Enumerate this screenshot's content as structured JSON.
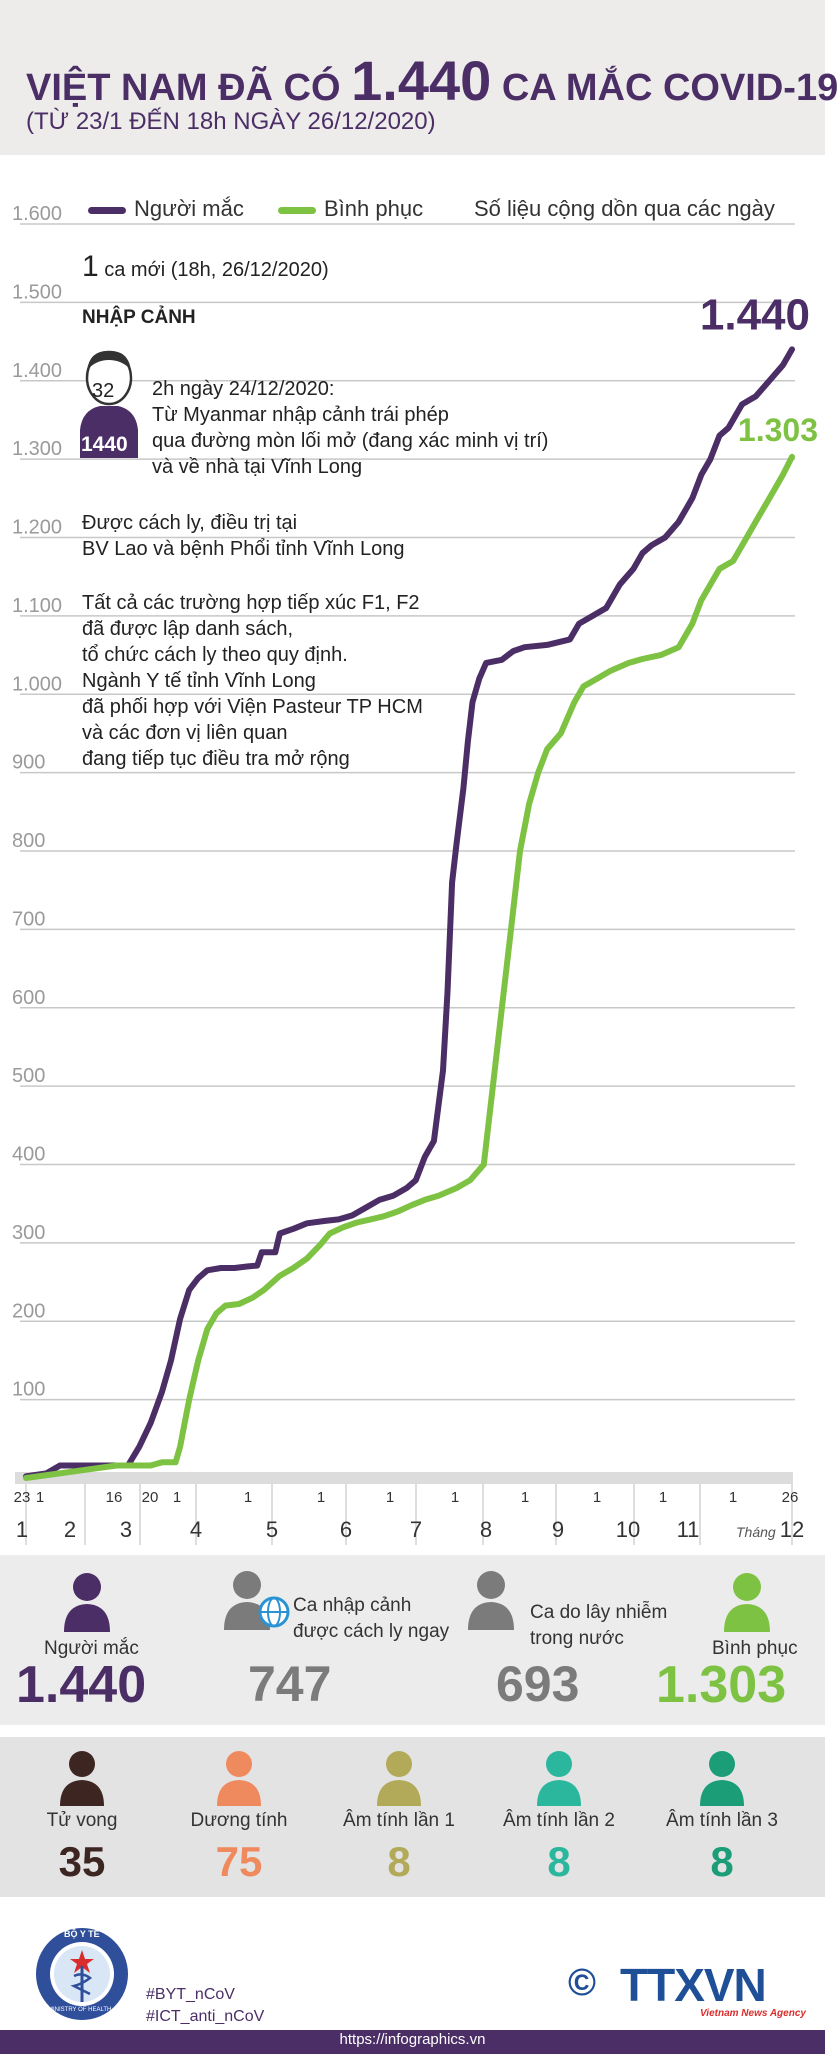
{
  "header": {
    "title_part1": "VIỆT NAM ĐÃ CÓ",
    "title_number": "1.440",
    "title_part2": "CA MẮC COVID-19",
    "subtitle": "(TỪ 23/1 ĐẾN 18h NGÀY 26/12/2020)"
  },
  "legend": {
    "infected": "Người mắc",
    "recovered": "Bình phục",
    "note": "Số liệu cộng dồn qua các ngày"
  },
  "colors": {
    "infected": "#4b2e66",
    "recovered": "#7dc242",
    "grid": "#c8c8c8",
    "axis_label": "#9a9a9a"
  },
  "new_case": {
    "count": "1",
    "label": "ca mới (18h, 26/12/2020)",
    "category": "NHẬP CẢNH",
    "patient_age": "32",
    "patient_id": "1440",
    "lines": [
      "2h ngày 24/12/2020:",
      "Từ Myanmar nhập cảnh trái phép",
      "qua đường mòn lối mở (đang xác minh vị trí)",
      "và về nhà tại Vĩnh Long"
    ],
    "treatment": [
      "Được cách ly, điều trị tại",
      "BV Lao và bệnh Phổi tỉnh Vĩnh Long"
    ],
    "contacts": [
      "Tất cả các trường hợp tiếp xúc F1, F2",
      "đã được lập danh sách,",
      "tổ chức cách ly theo quy định.",
      "Ngành Y tế tỉnh Vĩnh Long",
      "đã phối hợp với Viện Pasteur TP HCM",
      "và các đơn vị liên quan",
      "đang tiếp tục điều tra mở rộng"
    ]
  },
  "chart_data": {
    "type": "line",
    "ylim": [
      0,
      1600
    ],
    "yticks": [
      "1.600",
      "1.500",
      "1.400",
      "1.300",
      "1.200",
      "1.100",
      "1.000",
      "900",
      "800",
      "700",
      "600",
      "500",
      "400",
      "300",
      "200",
      "100"
    ],
    "ytick_values": [
      1600,
      1500,
      1400,
      1300,
      1200,
      1100,
      1000,
      900,
      800,
      700,
      600,
      500,
      400,
      300,
      200,
      100
    ],
    "x_day_ticks": [
      "23",
      "1",
      "16",
      "20",
      "1",
      "1",
      "1",
      "1",
      "1",
      "1",
      "1",
      "1",
      "1",
      "26"
    ],
    "x_month_labels": [
      "1",
      "2",
      "3",
      "4",
      "5",
      "6",
      "7",
      "8",
      "9",
      "10",
      "11",
      "12"
    ],
    "x_month_caption": "Tháng",
    "x_range_days": [
      0,
      338
    ],
    "series": [
      {
        "name": "Người mắc",
        "end_label": "1.440",
        "points": [
          [
            0,
            2
          ],
          [
            9,
            6
          ],
          [
            15,
            16
          ],
          [
            23,
            16
          ],
          [
            38,
            16
          ],
          [
            45,
            16
          ],
          [
            50,
            40
          ],
          [
            55,
            70
          ],
          [
            60,
            110
          ],
          [
            64,
            150
          ],
          [
            68,
            203
          ],
          [
            72,
            240
          ],
          [
            76,
            255
          ],
          [
            80,
            265
          ],
          [
            86,
            268
          ],
          [
            92,
            268
          ],
          [
            98,
            270
          ],
          [
            102,
            271
          ],
          [
            104,
            288
          ],
          [
            110,
            288
          ],
          [
            112,
            312
          ],
          [
            118,
            318
          ],
          [
            124,
            325
          ],
          [
            132,
            328
          ],
          [
            138,
            330
          ],
          [
            144,
            335
          ],
          [
            150,
            345
          ],
          [
            156,
            355
          ],
          [
            162,
            360
          ],
          [
            168,
            370
          ],
          [
            172,
            380
          ],
          [
            176,
            410
          ],
          [
            180,
            430
          ],
          [
            184,
            520
          ],
          [
            186,
            620
          ],
          [
            188,
            760
          ],
          [
            190,
            810
          ],
          [
            193,
            880
          ],
          [
            195,
            940
          ],
          [
            197,
            990
          ],
          [
            200,
            1020
          ],
          [
            203,
            1040
          ],
          [
            210,
            1044
          ],
          [
            215,
            1055
          ],
          [
            220,
            1060
          ],
          [
            230,
            1063
          ],
          [
            240,
            1070
          ],
          [
            244,
            1090
          ],
          [
            250,
            1100
          ],
          [
            256,
            1110
          ],
          [
            262,
            1140
          ],
          [
            268,
            1160
          ],
          [
            272,
            1180
          ],
          [
            276,
            1190
          ],
          [
            282,
            1200
          ],
          [
            288,
            1220
          ],
          [
            294,
            1250
          ],
          [
            298,
            1280
          ],
          [
            302,
            1300
          ],
          [
            306,
            1330
          ],
          [
            310,
            1340
          ],
          [
            316,
            1370
          ],
          [
            322,
            1380
          ],
          [
            328,
            1400
          ],
          [
            334,
            1420
          ],
          [
            338,
            1440
          ]
        ]
      },
      {
        "name": "Bình phục",
        "end_label": "1.303",
        "points": [
          [
            0,
            0
          ],
          [
            10,
            4
          ],
          [
            25,
            10
          ],
          [
            40,
            16
          ],
          [
            55,
            16
          ],
          [
            60,
            20
          ],
          [
            66,
            20
          ],
          [
            68,
            40
          ],
          [
            72,
            100
          ],
          [
            76,
            150
          ],
          [
            80,
            190
          ],
          [
            84,
            210
          ],
          [
            88,
            220
          ],
          [
            94,
            222
          ],
          [
            100,
            230
          ],
          [
            105,
            240
          ],
          [
            112,
            258
          ],
          [
            118,
            268
          ],
          [
            124,
            280
          ],
          [
            130,
            298
          ],
          [
            134,
            312
          ],
          [
            140,
            320
          ],
          [
            146,
            326
          ],
          [
            152,
            330
          ],
          [
            158,
            334
          ],
          [
            164,
            340
          ],
          [
            170,
            348
          ],
          [
            176,
            355
          ],
          [
            182,
            360
          ],
          [
            190,
            370
          ],
          [
            196,
            380
          ],
          [
            202,
            400
          ],
          [
            206,
            500
          ],
          [
            210,
            600
          ],
          [
            214,
            700
          ],
          [
            218,
            800
          ],
          [
            222,
            860
          ],
          [
            226,
            900
          ],
          [
            230,
            930
          ],
          [
            236,
            950
          ],
          [
            242,
            990
          ],
          [
            246,
            1010
          ],
          [
            252,
            1020
          ],
          [
            258,
            1030
          ],
          [
            266,
            1040
          ],
          [
            272,
            1045
          ],
          [
            280,
            1050
          ],
          [
            288,
            1060
          ],
          [
            294,
            1090
          ],
          [
            298,
            1120
          ],
          [
            302,
            1140
          ],
          [
            306,
            1160
          ],
          [
            312,
            1170
          ],
          [
            318,
            1200
          ],
          [
            322,
            1220
          ],
          [
            326,
            1240
          ],
          [
            330,
            1260
          ],
          [
            334,
            1280
          ],
          [
            338,
            1303
          ]
        ]
      }
    ]
  },
  "stats_row1": [
    {
      "label": "Người mắc",
      "value": "1.440",
      "color": "#4b2e66"
    },
    {
      "label_lines": [
        "Ca nhập cảnh",
        "được cách ly ngay"
      ],
      "value": "747",
      "color": "#7b7b7b"
    },
    {
      "label_lines": [
        "Ca do lây nhiễm",
        "trong nước"
      ],
      "value": "693",
      "color": "#7b7b7b"
    },
    {
      "label": "Bình phục",
      "value": "1.303",
      "color": "#7dc242"
    }
  ],
  "stats_row2": [
    {
      "label": "Tử vong",
      "value": "35",
      "color": "#3d2622"
    },
    {
      "label": "Dương tính",
      "value": "75",
      "color": "#ef8a5e"
    },
    {
      "label": "Âm tính lần 1",
      "value": "8",
      "color": "#b2aa59"
    },
    {
      "label": "Âm tính lần 2",
      "value": "8",
      "color": "#2bb79e"
    },
    {
      "label": "Âm tính lần 3",
      "value": "8",
      "color": "#1b9d78"
    }
  ],
  "footer": {
    "logo_text_top": "BỘ Y TẾ",
    "logo_text_bottom": "MINISTRY OF HEALTH",
    "hashtags": [
      "#BYT_nCoV",
      "#ICT_anti_nCoV"
    ],
    "copyright": "©",
    "agency": "TTXVN",
    "agency_sub": "Vietnam News Agency",
    "url": "https://infographics.vn"
  }
}
